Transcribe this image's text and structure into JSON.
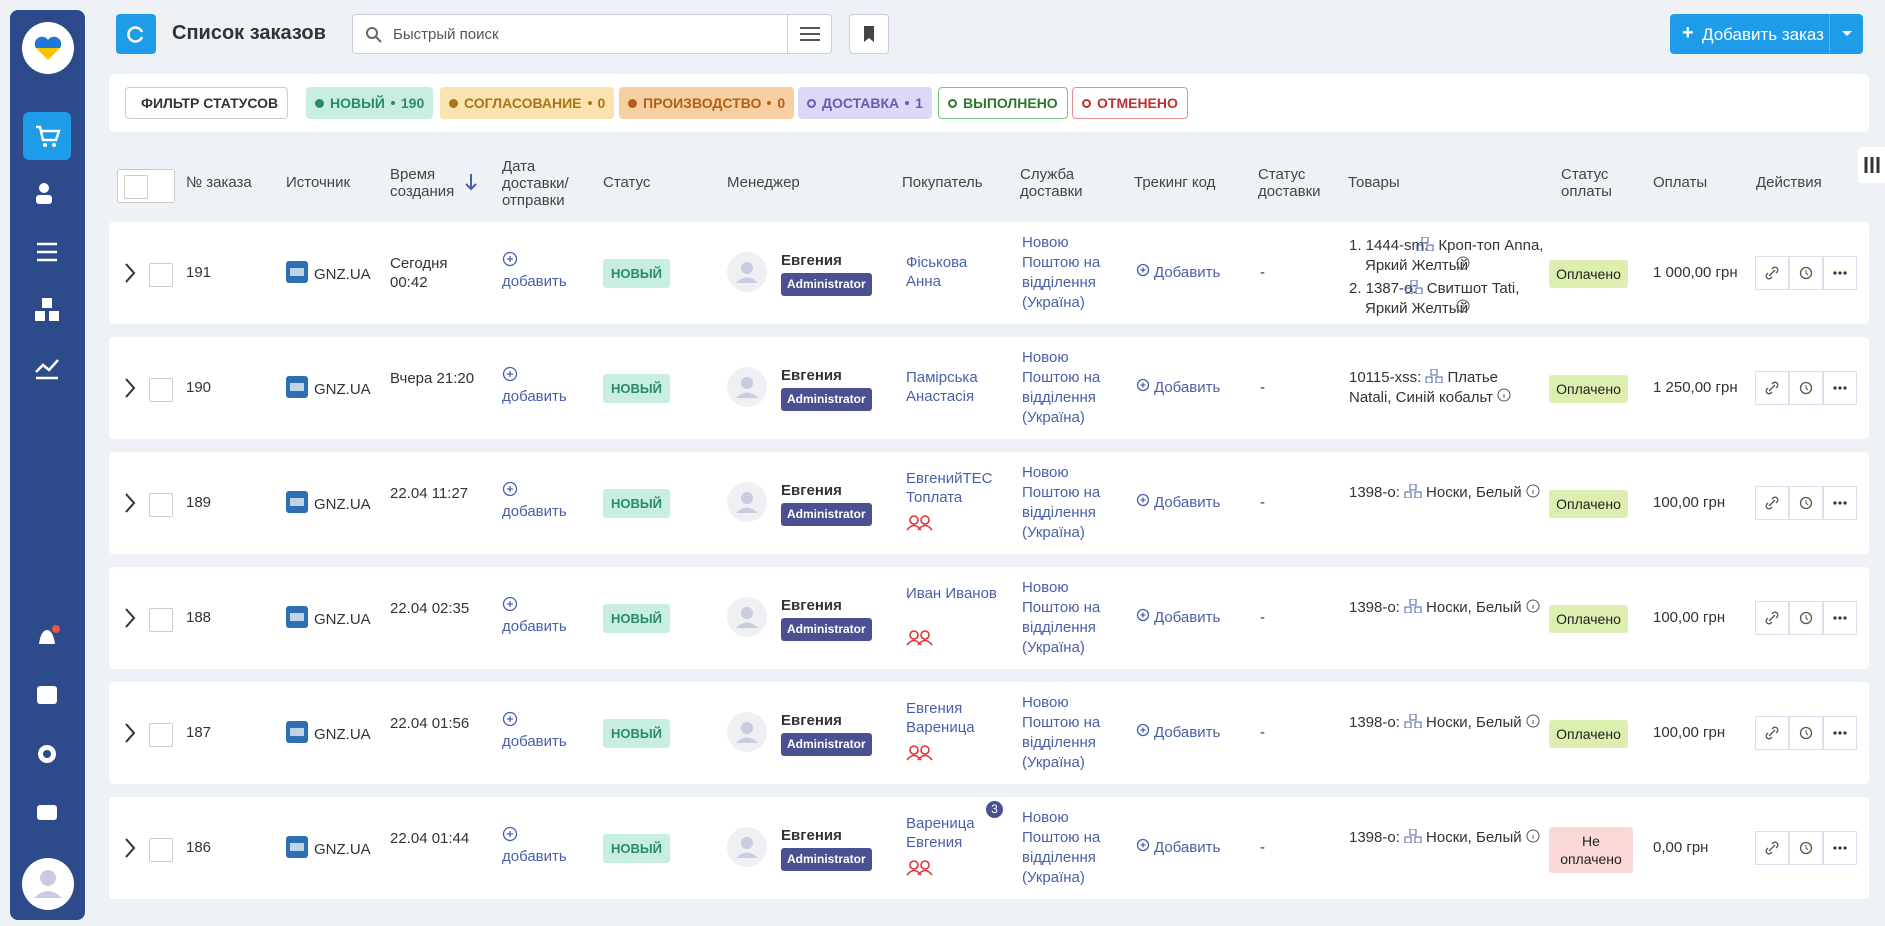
{
  "header": {
    "title": "Список заказов",
    "search_placeholder": "Быстрый поиск",
    "add_button": "Добавить заказ"
  },
  "filters": {
    "label": "ФИЛЬТР СТАТУСОВ",
    "statuses": [
      {
        "name": "НОВЫЙ",
        "count": 190
      },
      {
        "name": "СОГЛАСОВАНИЕ",
        "count": 0
      },
      {
        "name": "ПРОИЗВОДСТВО",
        "count": 0
      },
      {
        "name": "ДОСТАВКА",
        "count": 1
      },
      {
        "name": "ВЫПОЛНЕНО"
      },
      {
        "name": "ОТМЕНЕНО"
      }
    ]
  },
  "columns": [
    "№ заказа",
    "Источник",
    "Время создания",
    "Дата доставки/ отправки",
    "Статус",
    "Менеджер",
    "Покупатель",
    "Служба доставки",
    "Трекинг код",
    "Статус доставки",
    "Товары",
    "Статус оплаты",
    "Оплаты",
    "Действия"
  ],
  "orders": [
    {
      "id": "191",
      "source": "GNZ.UA",
      "created": "Сегодня 00:42",
      "delivery_date": "добавить",
      "status": "НОВЫЙ",
      "manager": {
        "name": "Евгения",
        "role": "Administrator"
      },
      "buyer": "Фіськова Анна",
      "delivery_service": "Новою Поштою на відділення (Україна)",
      "tracking": "Добавить",
      "delivery_status": "-",
      "items": [
        {
          "sku": "1. 1444-sm:",
          "name": "Кроп-топ Anna, Яркий Желтый"
        },
        {
          "sku": "2. 1387-o:",
          "name": "Свитшот Tati, Яркий Желтый"
        }
      ],
      "payment_status": "Оплачено",
      "payment": "1 000,00 грн"
    },
    {
      "id": "190",
      "source": "GNZ.UA",
      "created": "Вчера 21:20",
      "delivery_date": "добавить",
      "status": "НОВЫЙ",
      "manager": {
        "name": "Евгения",
        "role": "Administrator"
      },
      "buyer": "Памірська Анастасія",
      "delivery_service": "Новою Поштою на відділення (Україна)",
      "tracking": "Добавить",
      "delivery_status": "-",
      "items": [
        {
          "sku": "10115-xss:",
          "name": "Платье Natali, Синій кобальт"
        }
      ],
      "payment_status": "Оплачено",
      "payment": "1 250,00 грн"
    },
    {
      "id": "189",
      "source": "GNZ.UA",
      "created": "22.04 11:27",
      "delivery_date": "добавить",
      "status": "НОВЫЙ",
      "manager": {
        "name": "Евгения",
        "role": "Administrator"
      },
      "buyer": "ЕвгенийТЕС Топлата",
      "buyer_repeat": true,
      "delivery_service": "Новою Поштою на відділення (Україна)",
      "tracking": "Добавить",
      "delivery_status": "-",
      "items": [
        {
          "sku": "1398-o:",
          "name": "Носки, Белый"
        }
      ],
      "payment_status": "Оплачено",
      "payment": "100,00 грн"
    },
    {
      "id": "188",
      "source": "GNZ.UA",
      "created": "22.04 02:35",
      "delivery_date": "добавить",
      "status": "НОВЫЙ",
      "manager": {
        "name": "Евгения",
        "role": "Administrator"
      },
      "buyer": "Иван Иванов",
      "buyer_repeat": true,
      "delivery_service": "Новою Поштою на відділення (Україна)",
      "tracking": "Добавить",
      "delivery_status": "-",
      "items": [
        {
          "sku": "1398-o:",
          "name": "Носки, Белый"
        }
      ],
      "payment_status": "Оплачено",
      "payment": "100,00 грн"
    },
    {
      "id": "187",
      "source": "GNZ.UA",
      "created": "22.04 01:56",
      "delivery_date": "добавить",
      "status": "НОВЫЙ",
      "manager": {
        "name": "Евгения",
        "role": "Administrator"
      },
      "buyer": "Евгения Вареница",
      "buyer_repeat": true,
      "delivery_service": "Новою Поштою на відділення (Україна)",
      "tracking": "Добавить",
      "delivery_status": "-",
      "items": [
        {
          "sku": "1398-o:",
          "name": "Носки, Белый"
        }
      ],
      "payment_status": "Оплачено",
      "payment": "100,00 грн"
    },
    {
      "id": "186",
      "source": "GNZ.UA",
      "created": "22.04 01:44",
      "delivery_date": "добавить",
      "status": "НОВЫЙ",
      "manager": {
        "name": "Евгения",
        "role": "Administrator"
      },
      "buyer": "Вареница Евгения",
      "buyer_badge": "3",
      "buyer_repeat": true,
      "delivery_service": "Новою Поштою на відділення (Україна)",
      "tracking": "Добавить",
      "delivery_status": "-",
      "items": [
        {
          "sku": "1398-o:",
          "name": "Носки, Белый"
        }
      ],
      "payment_status": "Не оплачено",
      "payment": "0,00 грн"
    }
  ]
}
